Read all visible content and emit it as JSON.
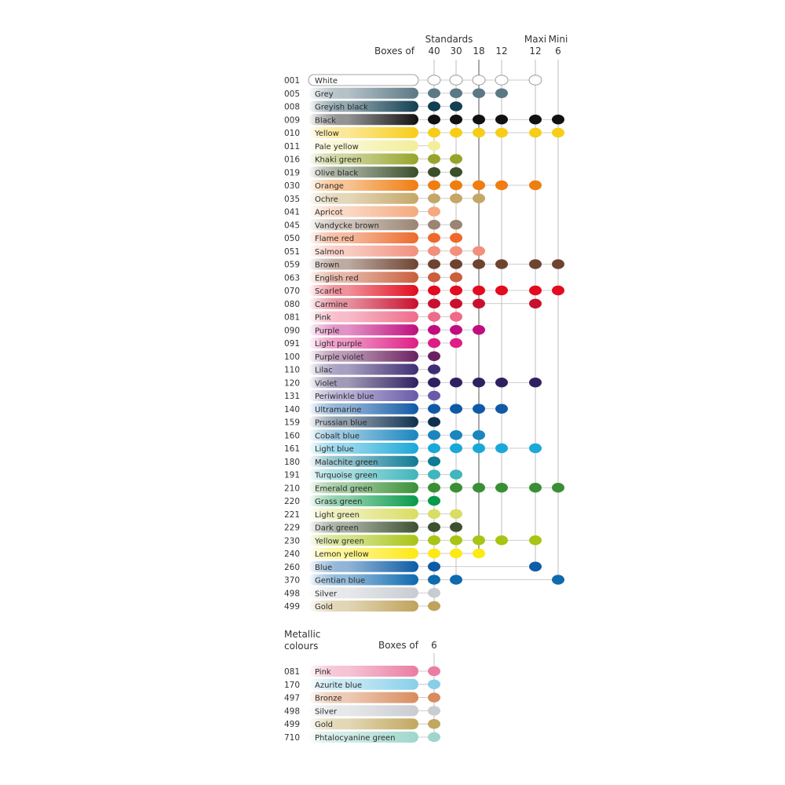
{
  "header": {
    "standards_label": "Standards",
    "boxes_label": "Boxes of",
    "maxi_label": "Maxi",
    "mini_label": "Mini"
  },
  "chart_data": {
    "type": "table",
    "columns": [
      {
        "group": "Standards",
        "size": "40"
      },
      {
        "group": "Standards",
        "size": "30"
      },
      {
        "group": "Standards",
        "size": "18"
      },
      {
        "group": "Standards",
        "size": "12"
      },
      {
        "group": "Maxi",
        "size": "12"
      },
      {
        "group": "Mini",
        "size": "6"
      }
    ],
    "rows": [
      {
        "code": "001",
        "name": "White",
        "color": "#ffffff",
        "boxes": [
          "40",
          "30",
          "18",
          "12",
          "Maxi 12"
        ]
      },
      {
        "code": "005",
        "name": "Grey",
        "color": "#5b7885",
        "boxes": [
          "40",
          "30",
          "18",
          "12"
        ]
      },
      {
        "code": "008",
        "name": "Greyish black",
        "color": "#123f52",
        "boxes": [
          "40",
          "30"
        ]
      },
      {
        "code": "009",
        "name": "Black",
        "color": "#111111",
        "boxes": [
          "40",
          "30",
          "18",
          "12",
          "Maxi 12",
          "Mini 6"
        ]
      },
      {
        "code": "010",
        "name": "Yellow",
        "color": "#f7cd17",
        "boxes": [
          "40",
          "30",
          "18",
          "12",
          "Maxi 12",
          "Mini 6"
        ]
      },
      {
        "code": "011",
        "name": "Pale yellow",
        "color": "#f2ee9a",
        "boxes": [
          "40"
        ]
      },
      {
        "code": "016",
        "name": "Khaki green",
        "color": "#96a52a",
        "boxes": [
          "40",
          "30"
        ]
      },
      {
        "code": "019",
        "name": "Olive black",
        "color": "#3a4f2a",
        "boxes": [
          "40",
          "30"
        ]
      },
      {
        "code": "030",
        "name": "Orange",
        "color": "#ef7d10",
        "boxes": [
          "40",
          "30",
          "18",
          "12",
          "Maxi 12"
        ]
      },
      {
        "code": "035",
        "name": "Ochre",
        "color": "#c4a767",
        "boxes": [
          "40",
          "30",
          "18"
        ]
      },
      {
        "code": "041",
        "name": "Apricot",
        "color": "#f4a97e",
        "boxes": [
          "40"
        ]
      },
      {
        "code": "045",
        "name": "Vandycke brown",
        "color": "#9a8472",
        "boxes": [
          "40",
          "30"
        ]
      },
      {
        "code": "050",
        "name": "Flame red",
        "color": "#ed6a2c",
        "boxes": [
          "40",
          "30"
        ]
      },
      {
        "code": "051",
        "name": "Salmon",
        "color": "#f1907d",
        "boxes": [
          "40",
          "30",
          "18"
        ]
      },
      {
        "code": "059",
        "name": "Brown",
        "color": "#6e4430",
        "boxes": [
          "40",
          "30",
          "18",
          "12",
          "Maxi 12",
          "Mini 6"
        ]
      },
      {
        "code": "063",
        "name": "English red",
        "color": "#c95f3d",
        "boxes": [
          "40",
          "30"
        ]
      },
      {
        "code": "070",
        "name": "Scarlet",
        "color": "#e20b1f",
        "boxes": [
          "40",
          "30",
          "18",
          "12",
          "Maxi 12",
          "Mini 6"
        ]
      },
      {
        "code": "080",
        "name": "Carmine",
        "color": "#c8102e",
        "boxes": [
          "40",
          "30",
          "18",
          "Maxi 12"
        ]
      },
      {
        "code": "081",
        "name": "Pink",
        "color": "#ee6b8a",
        "boxes": [
          "40",
          "30"
        ]
      },
      {
        "code": "090",
        "name": "Purple",
        "color": "#c00e7e",
        "boxes": [
          "40",
          "30",
          "18"
        ]
      },
      {
        "code": "091",
        "name": "Light purple",
        "color": "#de1d86",
        "boxes": [
          "40",
          "30"
        ]
      },
      {
        "code": "100",
        "name": "Purple violet",
        "color": "#6b2160",
        "boxes": [
          "40"
        ]
      },
      {
        "code": "110",
        "name": "Lilac",
        "color": "#3f2d74",
        "boxes": [
          "40"
        ]
      },
      {
        "code": "120",
        "name": "Violet",
        "color": "#2f2160",
        "boxes": [
          "40",
          "30",
          "18",
          "12",
          "Maxi 12"
        ]
      },
      {
        "code": "131",
        "name": "Periwinkle blue",
        "color": "#6a5aa8",
        "boxes": [
          "40"
        ]
      },
      {
        "code": "140",
        "name": "Ultramarine",
        "color": "#0f5aa6",
        "boxes": [
          "40",
          "30",
          "18",
          "12"
        ]
      },
      {
        "code": "159",
        "name": "Prussian blue",
        "color": "#0f304f",
        "boxes": [
          "40"
        ]
      },
      {
        "code": "160",
        "name": "Cobalt blue",
        "color": "#1a85be",
        "boxes": [
          "40",
          "30",
          "18"
        ]
      },
      {
        "code": "161",
        "name": "Light blue",
        "color": "#1aa8d8",
        "boxes": [
          "40",
          "30",
          "18",
          "12",
          "Maxi 12"
        ]
      },
      {
        "code": "180",
        "name": "Malachite green",
        "color": "#0f7b94",
        "boxes": [
          "40"
        ]
      },
      {
        "code": "191",
        "name": "Turquoise green",
        "color": "#3fb5bc",
        "boxes": [
          "40",
          "30"
        ]
      },
      {
        "code": "210",
        "name": "Emerald green",
        "color": "#3a8f36",
        "boxes": [
          "40",
          "30",
          "18",
          "12",
          "Maxi 12",
          "Mini 6"
        ]
      },
      {
        "code": "220",
        "name": "Grass green",
        "color": "#089a4a",
        "boxes": [
          "40"
        ]
      },
      {
        "code": "221",
        "name": "Light green",
        "color": "#d9dd63",
        "boxes": [
          "40",
          "30"
        ]
      },
      {
        "code": "229",
        "name": "Dark green",
        "color": "#3d5132",
        "boxes": [
          "40",
          "30"
        ]
      },
      {
        "code": "230",
        "name": "Yellow green",
        "color": "#a8c414",
        "boxes": [
          "40",
          "30",
          "18",
          "12",
          "Maxi 12"
        ]
      },
      {
        "code": "240",
        "name": "Lemon yellow",
        "color": "#fde913",
        "boxes": [
          "40",
          "30",
          "18"
        ]
      },
      {
        "code": "260",
        "name": "Blue",
        "color": "#0e5ca6",
        "boxes": [
          "40",
          "Maxi 12"
        ]
      },
      {
        "code": "370",
        "name": "Gentian blue",
        "color": "#0f6aae",
        "boxes": [
          "40",
          "30",
          "Mini 6"
        ]
      },
      {
        "code": "498",
        "name": "Silver",
        "color": "#c8ccd1",
        "boxes": [
          "40"
        ]
      },
      {
        "code": "499",
        "name": "Gold",
        "color": "#bfa35c",
        "boxes": [
          "40"
        ]
      }
    ],
    "metallic": {
      "title_line1": "Metallic",
      "title_line2": "colours",
      "boxes_label": "Boxes of",
      "box_size": "6",
      "rows": [
        {
          "code": "081",
          "name": "Pink",
          "color": "#ea7da3"
        },
        {
          "code": "170",
          "name": "Azurite blue",
          "color": "#87cfe9"
        },
        {
          "code": "497",
          "name": "Bronze",
          "color": "#d88b5e"
        },
        {
          "code": "498",
          "name": "Silver",
          "color": "#c9ccd0"
        },
        {
          "code": "499",
          "name": "Gold",
          "color": "#c1a85f"
        },
        {
          "code": "710",
          "name": "Phtalocyanine green",
          "color": "#9ed6cb"
        }
      ]
    }
  }
}
